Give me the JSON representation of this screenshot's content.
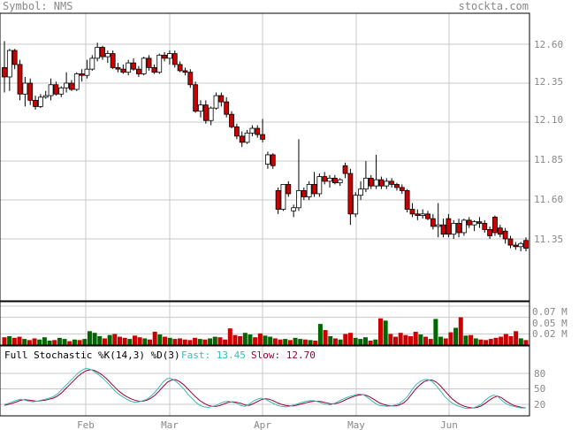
{
  "header": {
    "symbol_label": "Symbol: NMS",
    "brand": "stockta.com"
  },
  "price_panel": {
    "y_ticks": [
      "12.60",
      "12.35",
      "12.10",
      "11.85",
      "11.60",
      "11.35"
    ]
  },
  "volume_panel": {
    "y_ticks": [
      "0.07 M",
      "0.05 M",
      "0.02 M"
    ]
  },
  "stochastic_panel": {
    "title": "Full Stochastic %K(14,3) %D(3)",
    "fast_label": "Fast: 13.45",
    "slow_label": "Slow: 12.70",
    "y_ticks": [
      "80",
      "50",
      "20"
    ]
  },
  "x_axis": {
    "months": [
      "Feb",
      "Mar",
      "Apr",
      "May",
      "Jun"
    ]
  },
  "colors": {
    "up": "#ffffff",
    "down": "#cc0000",
    "vol_up": "#006600",
    "vol_down": "#cc0000",
    "fast_line": "#3cb8b8",
    "slow_line": "#990033",
    "grid": "#c8c8c8",
    "text": "#888888"
  },
  "chart_data": [
    {
      "type": "candlestick",
      "title": "",
      "y_ticks": [
        12.6,
        12.35,
        12.1,
        11.85,
        11.6,
        11.35
      ],
      "ylim": [
        11.09,
        12.7
      ],
      "x_ticks": [
        "Feb",
        "Mar",
        "Apr",
        "May",
        "Jun"
      ],
      "grid": true,
      "candles": [
        [
          12.45,
          12.62,
          12.29,
          12.39
        ],
        [
          12.39,
          12.57,
          12.3,
          12.56
        ],
        [
          12.56,
          12.57,
          12.44,
          12.47
        ],
        [
          12.47,
          12.5,
          12.24,
          12.28
        ],
        [
          12.28,
          12.39,
          12.2,
          12.35
        ],
        [
          12.35,
          12.38,
          12.21,
          12.24
        ],
        [
          12.24,
          12.27,
          12.18,
          12.2
        ],
        [
          12.2,
          12.28,
          12.19,
          12.26
        ],
        [
          12.26,
          12.3,
          12.25,
          12.27
        ],
        [
          12.27,
          12.38,
          12.24,
          12.34
        ],
        [
          12.34,
          12.36,
          12.27,
          12.28
        ],
        [
          12.28,
          12.33,
          12.26,
          12.32
        ],
        [
          12.32,
          12.42,
          12.29,
          12.35
        ],
        [
          12.35,
          12.37,
          12.3,
          12.31
        ],
        [
          12.31,
          12.42,
          12.3,
          12.41
        ],
        [
          12.41,
          12.44,
          12.36,
          12.4
        ],
        [
          12.4,
          12.5,
          12.38,
          12.44
        ],
        [
          12.44,
          12.53,
          12.43,
          12.51
        ],
        [
          12.51,
          12.61,
          12.49,
          12.58
        ],
        [
          12.58,
          12.59,
          12.5,
          12.52
        ],
        [
          12.52,
          12.56,
          12.48,
          12.54
        ],
        [
          12.54,
          12.56,
          12.44,
          12.45
        ],
        [
          12.45,
          12.48,
          12.42,
          12.44
        ],
        [
          12.44,
          12.47,
          12.41,
          12.42
        ],
        [
          12.42,
          12.5,
          12.4,
          12.48
        ],
        [
          12.48,
          12.51,
          12.43,
          12.44
        ],
        [
          12.44,
          12.46,
          12.39,
          12.41
        ],
        [
          12.41,
          12.52,
          12.4,
          12.51
        ],
        [
          12.51,
          12.53,
          12.43,
          12.45
        ],
        [
          12.45,
          12.47,
          12.41,
          12.42
        ],
        [
          12.42,
          12.54,
          12.41,
          12.53
        ],
        [
          12.53,
          12.55,
          12.49,
          12.51
        ],
        [
          12.51,
          12.56,
          12.47,
          12.54
        ],
        [
          12.54,
          12.56,
          12.45,
          12.47
        ],
        [
          12.47,
          12.49,
          12.42,
          12.43
        ],
        [
          12.43,
          12.45,
          12.4,
          12.42
        ],
        [
          12.42,
          12.44,
          12.32,
          12.34
        ],
        [
          12.34,
          12.36,
          12.16,
          12.17
        ],
        [
          12.17,
          12.24,
          12.13,
          12.21
        ],
        [
          12.21,
          12.24,
          12.09,
          12.11
        ],
        [
          12.11,
          12.2,
          12.08,
          12.19
        ],
        [
          12.19,
          12.29,
          12.18,
          12.27
        ],
        [
          12.27,
          12.29,
          12.2,
          12.23
        ],
        [
          12.23,
          12.26,
          12.13,
          12.15
        ],
        [
          12.15,
          12.17,
          12.06,
          12.07
        ],
        [
          12.07,
          12.09,
          11.99,
          12.01
        ],
        [
          12.01,
          12.04,
          11.94,
          11.97
        ],
        [
          11.97,
          12.05,
          11.96,
          12.03
        ],
        [
          12.03,
          12.08,
          12.01,
          12.06
        ],
        [
          12.06,
          12.08,
          12.0,
          12.02
        ],
        [
          12.02,
          12.12,
          11.97,
          11.99
        ],
        [
          11.83,
          11.91,
          11.8,
          11.89
        ],
        [
          11.89,
          11.9,
          11.8,
          11.82
        ],
        [
          11.66,
          11.68,
          11.51,
          11.54
        ],
        [
          11.54,
          11.7,
          11.53,
          11.7
        ],
        [
          11.7,
          11.72,
          11.62,
          11.64
        ],
        [
          11.53,
          11.57,
          11.49,
          11.55
        ],
        [
          11.55,
          11.99,
          11.53,
          11.66
        ],
        [
          11.66,
          11.68,
          11.6,
          11.62
        ],
        [
          11.62,
          11.72,
          11.6,
          11.7
        ],
        [
          11.7,
          11.78,
          11.62,
          11.64
        ],
        [
          11.64,
          11.77,
          11.62,
          11.75
        ],
        [
          11.75,
          11.78,
          11.7,
          11.72
        ],
        [
          11.72,
          11.76,
          11.68,
          11.74
        ],
        [
          11.74,
          11.76,
          11.7,
          11.71
        ],
        [
          11.71,
          11.74,
          11.69,
          11.73
        ],
        [
          11.82,
          11.84,
          11.74,
          11.77
        ],
        [
          11.77,
          11.8,
          11.44,
          11.51
        ],
        [
          11.51,
          11.65,
          11.49,
          11.63
        ],
        [
          11.63,
          11.72,
          11.6,
          11.67
        ],
        [
          11.67,
          11.85,
          11.65,
          11.74
        ],
        [
          11.74,
          11.76,
          11.67,
          11.69
        ],
        [
          11.69,
          11.89,
          11.67,
          11.73
        ],
        [
          11.73,
          11.75,
          11.67,
          11.69
        ],
        [
          11.69,
          11.74,
          11.67,
          11.72
        ],
        [
          11.72,
          11.74,
          11.68,
          11.7
        ],
        [
          11.7,
          11.71,
          11.66,
          11.68
        ],
        [
          11.68,
          11.7,
          11.64,
          11.66
        ],
        [
          11.66,
          11.67,
          11.52,
          11.54
        ],
        [
          11.54,
          11.58,
          11.49,
          11.51
        ],
        [
          11.51,
          11.54,
          11.47,
          11.5
        ],
        [
          11.5,
          11.54,
          11.48,
          11.51
        ],
        [
          11.51,
          11.53,
          11.47,
          11.48
        ],
        [
          11.48,
          11.51,
          11.41,
          11.43
        ],
        [
          11.43,
          11.58,
          11.36,
          11.44
        ],
        [
          11.44,
          11.48,
          11.36,
          11.38
        ],
        [
          11.48,
          11.51,
          11.36,
          11.38
        ],
        [
          11.38,
          11.47,
          11.35,
          11.45
        ],
        [
          11.45,
          11.48,
          11.36,
          11.39
        ],
        [
          11.39,
          11.48,
          11.37,
          11.47
        ],
        [
          11.47,
          11.49,
          11.42,
          11.44
        ],
        [
          11.44,
          11.47,
          11.4,
          11.46
        ],
        [
          11.46,
          11.49,
          11.42,
          11.45
        ],
        [
          11.45,
          11.47,
          11.39,
          11.41
        ],
        [
          11.41,
          11.43,
          11.35,
          11.37
        ],
        [
          11.49,
          11.5,
          11.37,
          11.39
        ],
        [
          11.42,
          11.44,
          11.36,
          11.38
        ],
        [
          11.4,
          11.42,
          11.32,
          11.35
        ],
        [
          11.35,
          11.37,
          11.29,
          11.31
        ],
        [
          11.31,
          11.33,
          11.28,
          11.3
        ],
        [
          11.3,
          11.33,
          11.27,
          11.32
        ],
        [
          11.34,
          11.36,
          11.27,
          11.29
        ]
      ]
    },
    {
      "type": "bar",
      "title": "",
      "y_ticks": [
        "0.07 M",
        "0.05 M",
        "0.02 M"
      ],
      "ylim": [
        0,
        0.078
      ],
      "values": [
        0.014,
        0.016,
        0.013,
        0.015,
        0.011,
        0.009,
        0.012,
        0.01,
        0.014,
        0.008,
        0.009,
        0.013,
        0.011,
        0.007,
        0.01,
        0.009,
        0.011,
        0.025,
        0.022,
        0.016,
        0.012,
        0.018,
        0.02,
        0.015,
        0.013,
        0.011,
        0.017,
        0.014,
        0.012,
        0.01,
        0.024,
        0.019,
        0.015,
        0.013,
        0.011,
        0.012,
        0.01,
        0.009,
        0.013,
        0.011,
        0.01,
        0.012,
        0.015,
        0.014,
        0.01,
        0.03,
        0.018,
        0.016,
        0.022,
        0.019,
        0.014,
        0.021,
        0.017,
        0.015,
        0.012,
        0.01,
        0.011,
        0.009,
        0.013,
        0.011,
        0.01,
        0.009,
        0.008,
        0.038,
        0.027,
        0.016,
        0.012,
        0.01,
        0.02,
        0.022,
        0.013,
        0.011,
        0.014,
        0.008,
        0.01,
        0.048,
        0.044,
        0.02,
        0.015,
        0.022,
        0.018,
        0.016,
        0.024,
        0.019,
        0.015,
        0.011,
        0.047,
        0.015,
        0.012,
        0.023,
        0.031,
        0.05,
        0.017,
        0.018,
        0.012,
        0.01,
        0.009,
        0.011,
        0.013,
        0.015,
        0.02,
        0.016,
        0.025,
        0.012,
        0.009
      ],
      "colors_up_down": "up=green, down=red"
    },
    {
      "type": "line",
      "title": "Full Stochastic %K(14,3) %D(3)",
      "y_ticks": [
        80,
        50,
        20
      ],
      "ylim": [
        0,
        100
      ],
      "series": [
        {
          "name": "Fast: 13.45",
          "values": [
            20,
            22,
            25,
            28,
            30,
            28,
            26,
            25,
            26,
            28,
            30,
            32,
            35,
            40,
            48,
            56,
            64,
            72,
            80,
            86,
            90,
            88,
            84,
            78,
            72,
            64,
            56,
            47,
            40,
            35,
            30,
            26,
            24,
            25,
            27,
            30,
            36,
            44,
            54,
            64,
            70,
            70,
            65,
            58,
            50,
            40,
            32,
            24,
            18,
            15,
            14,
            16,
            18,
            22,
            25,
            26,
            24,
            22,
            18,
            16,
            20,
            26,
            30,
            32,
            30,
            26,
            22,
            18,
            16,
            15,
            16,
            19,
            21,
            24,
            26,
            27,
            27,
            25,
            22,
            20,
            19,
            22,
            26,
            30,
            33,
            36,
            38,
            40,
            39,
            34,
            28,
            22,
            18,
            17,
            16,
            17,
            19,
            22,
            28,
            36,
            48,
            58,
            64,
            68,
            68,
            64,
            56,
            46,
            36,
            28,
            22,
            18,
            15,
            13,
            12,
            13,
            16,
            20,
            28,
            34,
            38,
            36,
            28,
            22,
            18,
            16,
            14,
            13,
            13
          ]
        },
        {
          "name": "Slow: 12.70",
          "values": [
            18,
            20,
            22,
            25,
            28,
            29,
            28,
            27,
            26,
            27,
            28,
            30,
            32,
            36,
            42,
            50,
            58,
            66,
            74,
            80,
            85,
            87,
            86,
            82,
            77,
            70,
            62,
            54,
            46,
            40,
            35,
            31,
            28,
            26,
            26,
            28,
            32,
            38,
            46,
            55,
            63,
            67,
            68,
            64,
            58,
            50,
            42,
            34,
            27,
            22,
            18,
            16,
            16,
            18,
            21,
            24,
            25,
            24,
            22,
            19,
            18,
            21,
            25,
            29,
            31,
            30,
            27,
            23,
            20,
            18,
            17,
            17,
            19,
            21,
            23,
            25,
            26,
            26,
            25,
            23,
            21,
            21,
            23,
            26,
            30,
            33,
            36,
            38,
            39,
            37,
            33,
            28,
            23,
            20,
            18,
            17,
            17,
            19,
            23,
            30,
            40,
            50,
            58,
            64,
            67,
            67,
            63,
            56,
            47,
            38,
            30,
            24,
            19,
            16,
            14,
            13,
            14,
            17,
            22,
            28,
            33,
            36,
            33,
            27,
            22,
            18,
            16,
            14,
            13
          ]
        }
      ]
    }
  ]
}
